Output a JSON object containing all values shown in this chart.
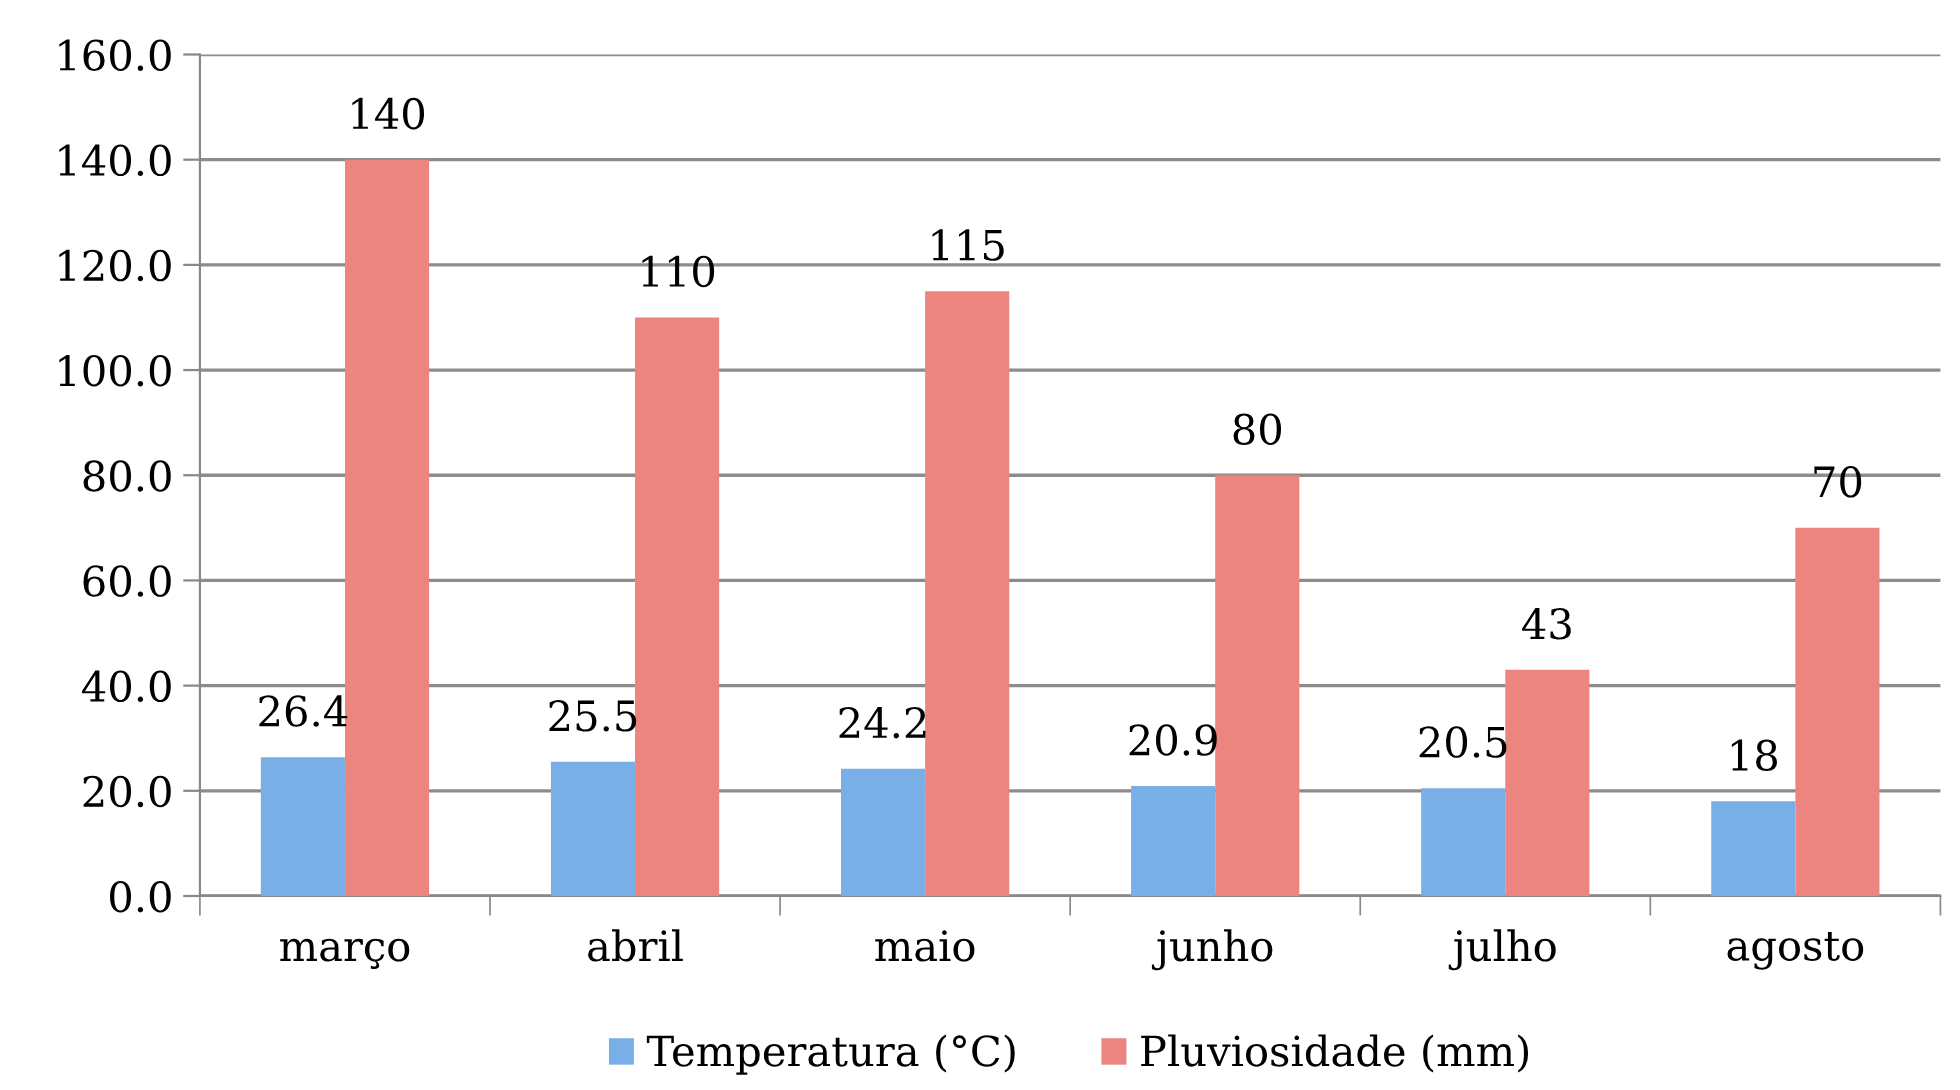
{
  "chart_data": {
    "type": "bar",
    "categories": [
      "março",
      "abril",
      "maio",
      "junho",
      "julho",
      "agosto"
    ],
    "series": [
      {
        "name": "Temperatura (°C)",
        "color": "#7aaee6",
        "values": [
          26.4,
          25.5,
          24.2,
          20.9,
          20.5,
          18
        ]
      },
      {
        "name": "Pluviosidade (mm)",
        "color": "#ec8580",
        "values": [
          140,
          110,
          115,
          80,
          43,
          70
        ]
      }
    ],
    "ylim": [
      0,
      160
    ],
    "yticks": [
      {
        "value": 0,
        "label": "0.0"
      },
      {
        "value": 20,
        "label": "20.0"
      },
      {
        "value": 40,
        "label": "40.0"
      },
      {
        "value": 60,
        "label": "60.0"
      },
      {
        "value": 80,
        "label": "80.0"
      },
      {
        "value": 100,
        "label": "100.0"
      },
      {
        "value": 120,
        "label": "120.0"
      },
      {
        "value": 140,
        "label": "140.0"
      },
      {
        "value": 160,
        "label": "160.0"
      }
    ],
    "grid": "y",
    "legend": "bottom",
    "data_labels": true
  }
}
